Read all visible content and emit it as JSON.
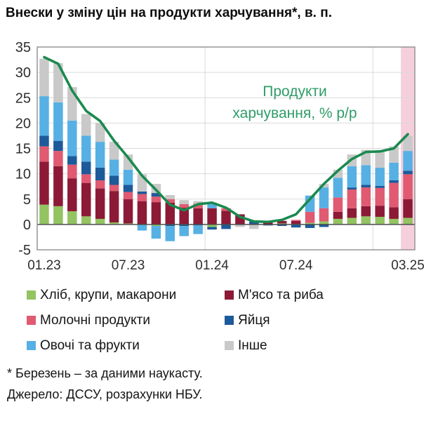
{
  "title": "Внески у зміну цін на продукти харчування*, в. п.",
  "footnotes": {
    "note": "* Березень – за даними наукасту.",
    "source": "Джерело: ДССУ, розрахунки НБУ."
  },
  "chart_data": {
    "type": "bar",
    "stacked": true,
    "title": "Внески у зміну цін на продукти харчування*, в. п.",
    "ylabel": "",
    "xlabel": "",
    "ylim": [
      -5,
      35
    ],
    "y_ticks": [
      35,
      30,
      25,
      20,
      15,
      10,
      5,
      0,
      -5
    ],
    "grid": true,
    "legend_position": "bottom",
    "categories": [
      "01.23",
      "02.23",
      "03.23",
      "04.23",
      "05.23",
      "06.23",
      "07.23",
      "08.23",
      "09.23",
      "10.23",
      "11.23",
      "12.23",
      "01.24",
      "02.24",
      "03.24",
      "04.24",
      "05.24",
      "06.24",
      "07.24",
      "08.24",
      "09.24",
      "10.24",
      "11.24",
      "12.24",
      "01.25",
      "02.25",
      "03.25"
    ],
    "x_tick_indices": [
      0,
      6,
      12,
      18,
      26
    ],
    "x_tick_labels": [
      "01.23",
      "07.23",
      "01.24",
      "07.24",
      "03.25"
    ],
    "year_boundary_indices": [
      12,
      24
    ],
    "series": [
      {
        "name": "Хліб, крупи, макарони",
        "color": "#94c362",
        "values": [
          3.9,
          3.6,
          2.6,
          1.6,
          1.1,
          0.4,
          0.2,
          0,
          -0.3,
          0,
          0,
          0,
          -0.5,
          0,
          0,
          0,
          0,
          0.2,
          0.1,
          0.3,
          0.6,
          1.1,
          1.3,
          1.6,
          1.5,
          1.1,
          1.3
        ]
      },
      {
        "name": "М'ясо та риба",
        "color": "#8c1a36",
        "values": [
          8.5,
          7.9,
          6.5,
          6.6,
          6.0,
          6.2,
          4.8,
          4.6,
          4.4,
          4.3,
          3.3,
          3.2,
          3.2,
          2.7,
          2.0,
          0,
          0.6,
          0.5,
          0.6,
          0,
          0,
          1.4,
          1.9,
          2.0,
          2.2,
          2.3,
          3.7
        ]
      },
      {
        "name": "Молочні продукти",
        "color": "#e05a72",
        "values": [
          3.0,
          3.0,
          2.7,
          1.7,
          1.6,
          1.2,
          1.4,
          1.4,
          1.1,
          0.7,
          0.7,
          0.9,
          0,
          0.5,
          0,
          0,
          0,
          0,
          0.2,
          2.2,
          2.6,
          2.8,
          3.7,
          3.7,
          3.5,
          4.8,
          4.9
        ]
      },
      {
        "name": "Яйця",
        "color": "#1d5a99",
        "values": [
          2.1,
          2.0,
          1.7,
          2.5,
          2.5,
          1.8,
          1.4,
          0.5,
          0.7,
          -0.3,
          -0.3,
          -0.2,
          -0.5,
          -0.9,
          0,
          0.6,
          -0.2,
          -0.3,
          -0.6,
          -0.7,
          -0.5,
          0,
          0.4,
          0.5,
          0.4,
          0.5,
          0.7
        ]
      },
      {
        "name": "Овочі та фрукти",
        "color": "#57b0e3",
        "values": [
          7.8,
          7.6,
          7.0,
          5.1,
          5.1,
          3.2,
          3.0,
          -1.2,
          -2.5,
          -3.0,
          -2.0,
          -1.7,
          1.1,
          0,
          0,
          0,
          0,
          0,
          0,
          3.2,
          4.1,
          3.9,
          4.2,
          3.9,
          3.6,
          3.5,
          3.9
        ]
      },
      {
        "name": "Інше",
        "color": "#c9c9c9",
        "values": [
          7.4,
          7.7,
          6.6,
          4.3,
          3.7,
          3.5,
          3.0,
          3.4,
          1.8,
          0.8,
          0.8,
          0.5,
          0,
          0,
          -0.5,
          -0.9,
          0,
          0,
          0,
          0,
          0.7,
          1.6,
          2.3,
          3.0,
          3.3,
          3.2,
          3.0
        ]
      }
    ],
    "line_series": {
      "name": "Продукти харчування, % р/р",
      "color": "#1a8a4f",
      "values": [
        33.0,
        31.7,
        26.4,
        22.4,
        20.4,
        16.5,
        13.2,
        9.6,
        6.8,
        3.9,
        2.8,
        4.0,
        4.3,
        3.3,
        1.5,
        0.6,
        0.5,
        0.9,
        2.0,
        5.0,
        8.0,
        10.6,
        12.9,
        14.3,
        14.4,
        15.0,
        17.8
      ]
    },
    "annotation": {
      "lines": [
        "Продукти",
        "харчування, % р/р"
      ],
      "color": "#2f9c68"
    },
    "highlight": {
      "category": "03.25",
      "color": "#f6cfdd"
    },
    "axis_colors": {
      "border": "#8f8f8f",
      "gridline": "#d9d9d9",
      "zero_line": "#4d4d4d",
      "tick_text": "#2e2e2e"
    }
  }
}
